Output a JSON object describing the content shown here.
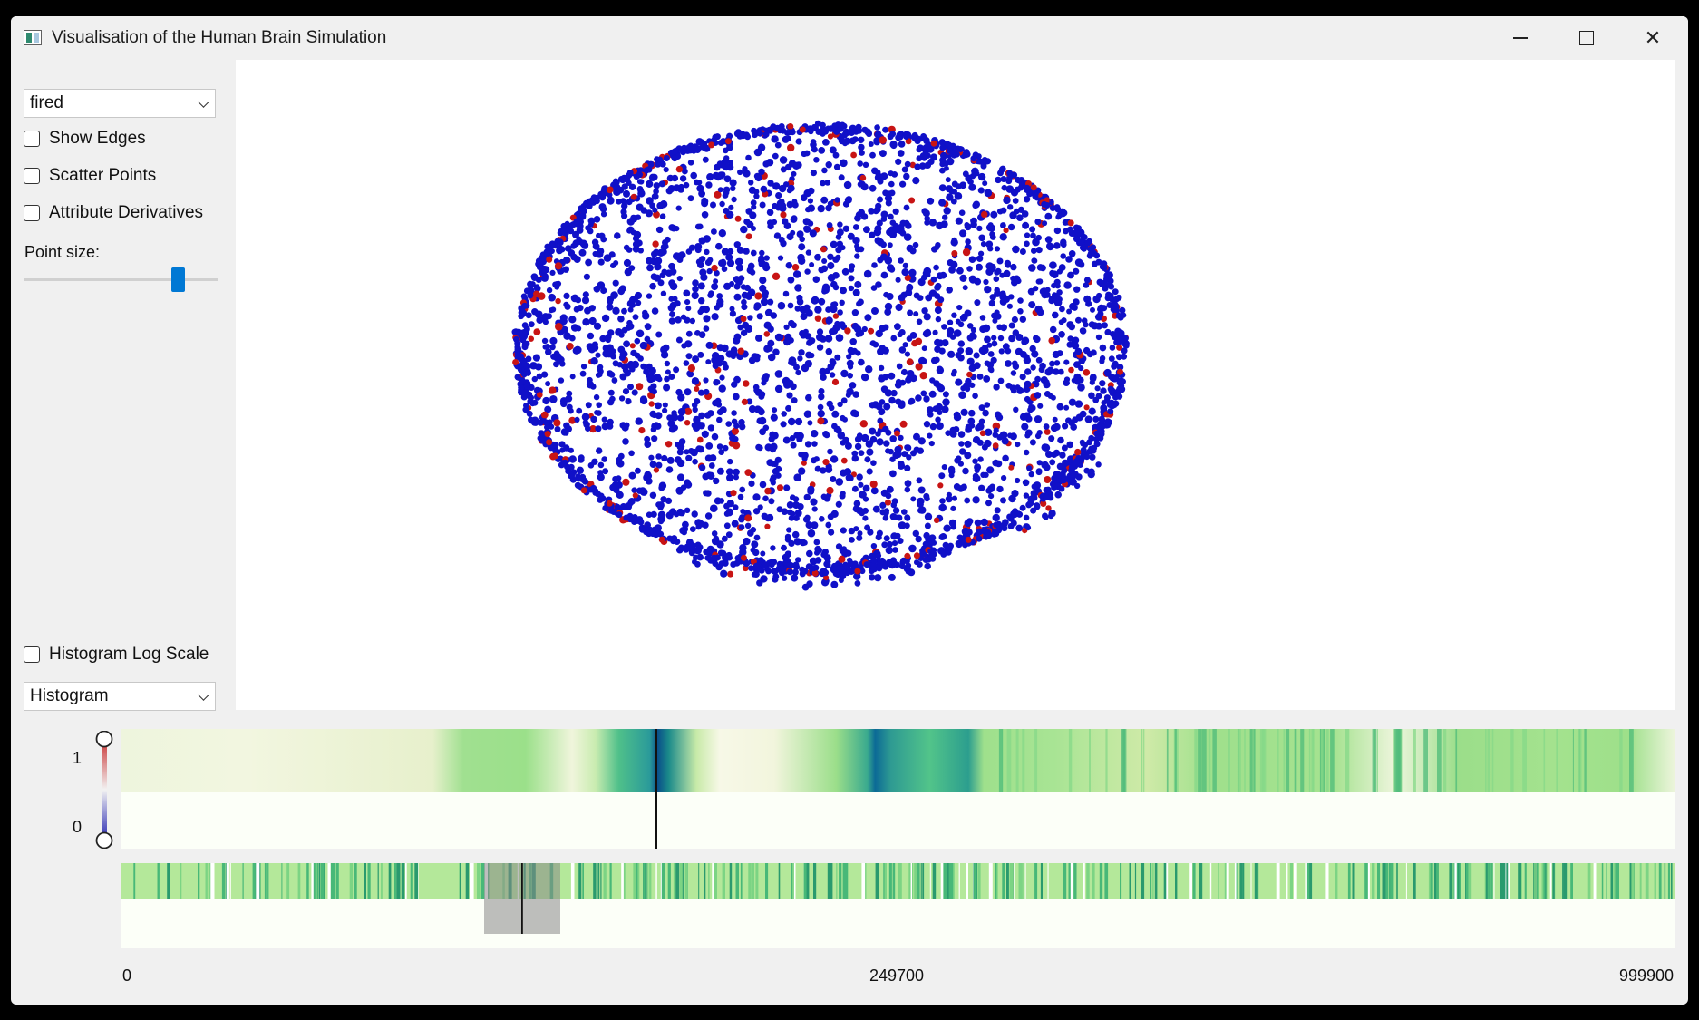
{
  "window": {
    "title": "Visualisation of the Human Brain Simulation"
  },
  "titlebar_icons": [
    "app-icon",
    "minimize-icon",
    "maximize-icon",
    "close-icon"
  ],
  "sidebar": {
    "attribute_select": {
      "value": "fired"
    },
    "checkboxes": [
      {
        "label": "Show Edges",
        "checked": false
      },
      {
        "label": "Scatter Points",
        "checked": false
      },
      {
        "label": "Attribute Derivatives",
        "checked": false
      }
    ],
    "point_size": {
      "label": "Point size:",
      "level": 0.8
    },
    "histogram_log": {
      "label": "Histogram Log Scale",
      "checked": false
    },
    "plot_select": {
      "value": "Histogram"
    }
  },
  "colors": {
    "fired": "#c81414",
    "not_fired": "#1010c8",
    "accent": "#0078d4"
  },
  "colorbar": {
    "max_label": "1",
    "min_label": "0"
  },
  "timeline": {
    "start": "0",
    "mid": "249700",
    "end": "999900"
  }
}
